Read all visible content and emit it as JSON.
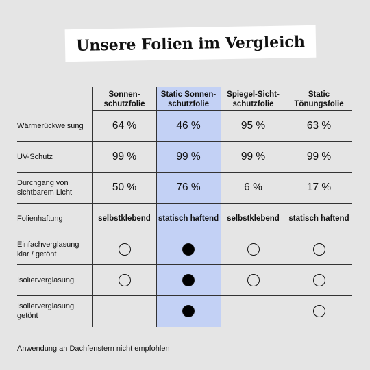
{
  "title": "Unsere Folien im Vergleich",
  "columns": [
    {
      "line1": "Sonnen-",
      "line2": "schutzfolie"
    },
    {
      "line1": "Static Sonnen-",
      "line2": "schutzfolie"
    },
    {
      "line1": "Spiegel-Sicht-",
      "line2": "schutzfolie"
    },
    {
      "line1": "Static",
      "line2": "Tönungsfolie"
    }
  ],
  "highlight_color": "#c3d1f5",
  "rows": [
    {
      "label_line1": "Wärmerückweisung",
      "label_line2": "",
      "values": [
        "64 %",
        "46 %",
        "95 %",
        "63 %"
      ]
    },
    {
      "label_line1": "UV-Schutz",
      "label_line2": "",
      "values": [
        "99 %",
        "99 %",
        "99 %",
        "99 %"
      ]
    },
    {
      "label_line1": "Durchgang von",
      "label_line2": "sichtbarem Licht",
      "values": [
        "50 %",
        "76 %",
        "6 %",
        "17 %"
      ]
    },
    {
      "label_line1": "Folienhaftung",
      "label_line2": "",
      "values": [
        "selbstklebend",
        "statisch haftend",
        "selbstklebend",
        "statisch haftend"
      ]
    },
    {
      "label_line1": "Einfachverglasung",
      "label_line2": "klar / getönt",
      "values": [
        "empty",
        "filled",
        "empty",
        "empty"
      ]
    },
    {
      "label_line1": "Isolierverglasung",
      "label_line2": "",
      "values": [
        "empty",
        "filled",
        "empty",
        "empty"
      ]
    },
    {
      "label_line1": "Isolierverglasung",
      "label_line2": "getönt",
      "values": [
        "none",
        "filled",
        "none",
        "empty"
      ]
    }
  ],
  "footnote": "Anwendung an Dachfenstern nicht empfohlen"
}
